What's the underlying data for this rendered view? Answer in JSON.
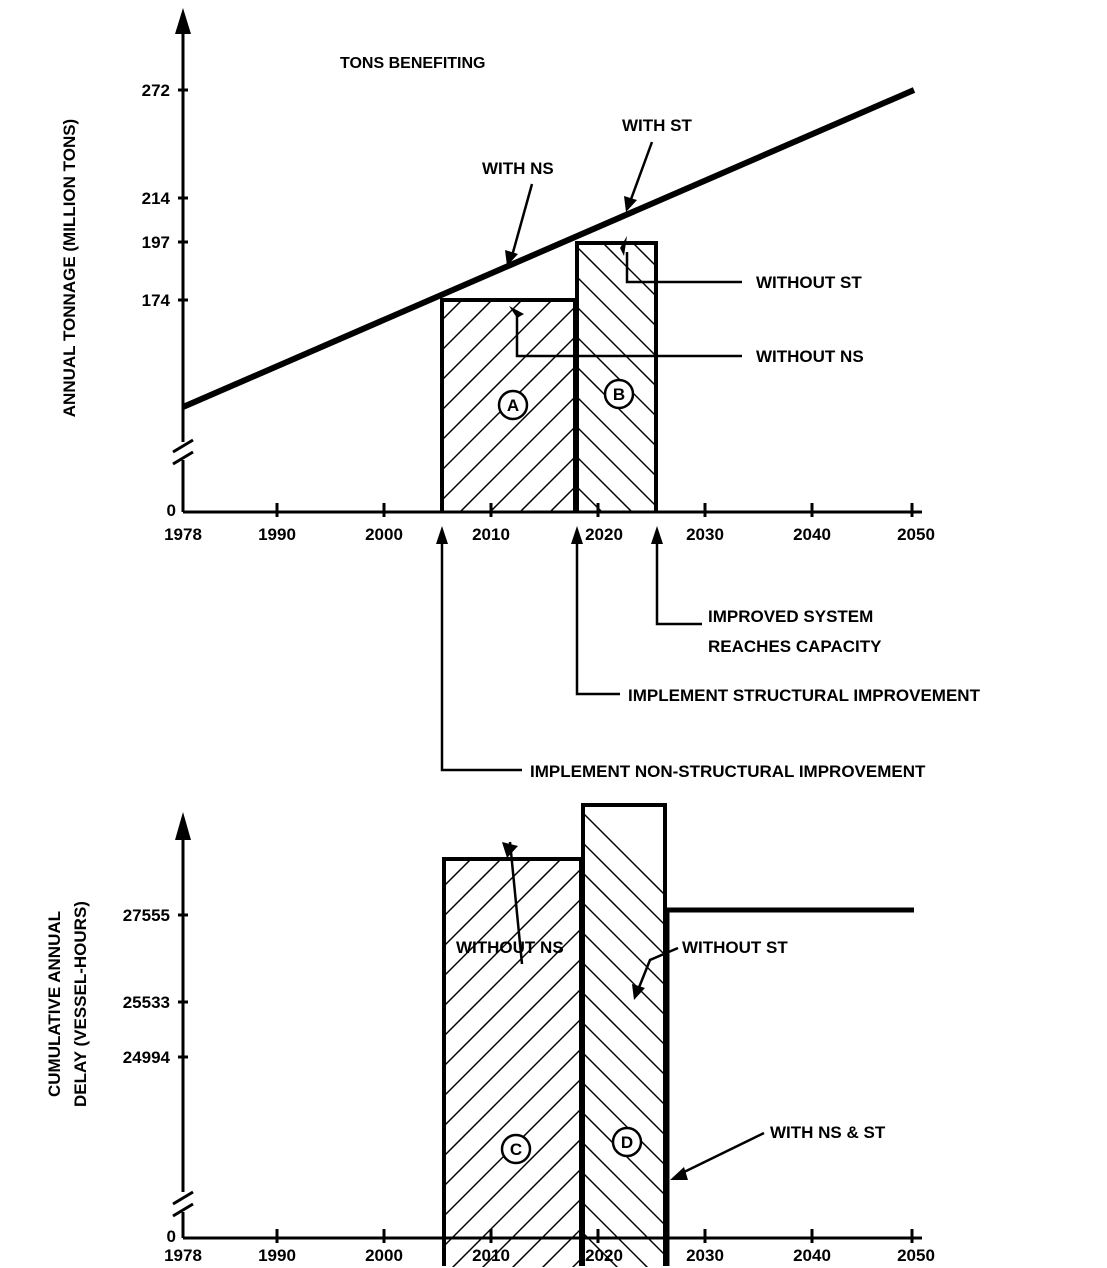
{
  "chart_data": [
    {
      "type": "line",
      "subtitle": "TONS BENEFITING",
      "ylabel": "ANNUAL TONNAGE (MILLION TONS)",
      "xticks": [
        "1978",
        "1990",
        "2000",
        "2010",
        "2020",
        "2030",
        "2040",
        "2050"
      ],
      "yticks": [
        "0",
        "174",
        "197",
        "214",
        "272"
      ],
      "xlim": [
        1978,
        2050
      ],
      "y_axis_break": true,
      "series": [
        {
          "name": "WITH NS",
          "x": [
            1978,
            2050
          ],
          "y": [
            130,
            272
          ]
        },
        {
          "name": "WITHOUT NS",
          "x": [
            2005,
            2017
          ],
          "y": [
            174,
            174
          ]
        },
        {
          "name": "WITHOUT ST",
          "x": [
            2017,
            2025
          ],
          "y": [
            197,
            197
          ]
        }
      ],
      "regions": [
        {
          "label": "A",
          "x": [
            2005,
            2017
          ],
          "y_top": 174
        },
        {
          "label": "B",
          "x": [
            2017,
            2025
          ],
          "y_top": 197
        }
      ],
      "annotations": {
        "with_ns": "WITH NS",
        "with_st": "WITH ST",
        "without_st": "WITHOUT ST",
        "without_ns": "WITHOUT NS",
        "improved_line1": "IMPROVED SYSTEM",
        "improved_line2": "REACHES CAPACITY",
        "implement_st": "IMPLEMENT STRUCTURAL IMPROVEMENT",
        "implement_ns": "IMPLEMENT NON-STRUCTURAL IMPROVEMENT"
      }
    },
    {
      "type": "line",
      "ylabel_line1": "CUMULATIVE ANNUAL",
      "ylabel_line2": "DELAY (VESSEL-HOURS)",
      "xticks": [
        "1978",
        "1990",
        "2000",
        "2010",
        "2020",
        "2030",
        "2040",
        "2050"
      ],
      "yticks": [
        "0",
        "24994",
        "25533",
        "27555"
      ],
      "xlim": [
        1978,
        2050
      ],
      "y_axis_break": true,
      "series": [
        {
          "name": "WITHOUT NS",
          "x": [
            2005,
            2018
          ],
          "y": [
            24994,
            24994
          ]
        },
        {
          "name": "WITHOUT ST",
          "x": [
            2018,
            2026
          ],
          "y": [
            25533,
            25533
          ]
        },
        {
          "name": "WITH NS & ST",
          "x": [
            2026,
            2050
          ],
          "y": [
            27555,
            27555
          ]
        }
      ],
      "regions": [
        {
          "label": "C",
          "x": [
            2005,
            2018
          ],
          "y_top": 24994
        },
        {
          "label": "D",
          "x": [
            2018,
            2026
          ],
          "y_top": 25533
        }
      ],
      "annotations": {
        "without_ns": "WITHOUT NS",
        "without_st": "WITHOUT ST",
        "with_ns_st": "WITH NS & ST"
      }
    }
  ]
}
